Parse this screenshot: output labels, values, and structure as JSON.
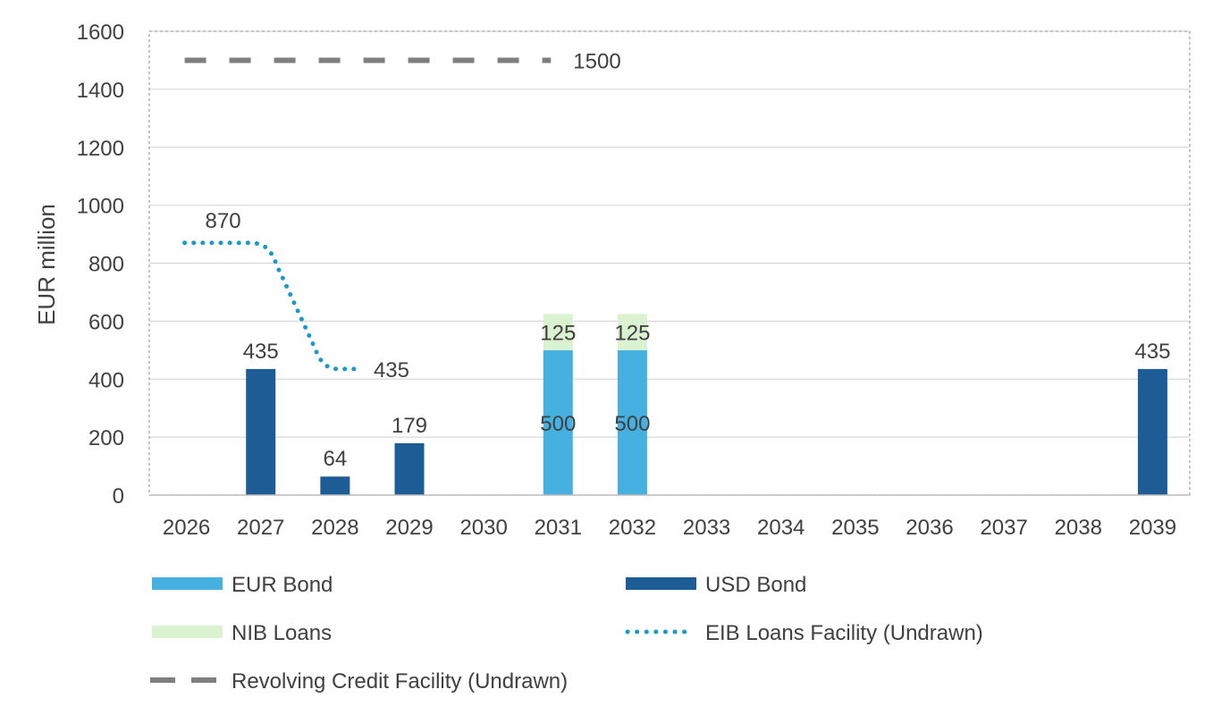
{
  "chart_data": {
    "type": "bar",
    "ylabel": "EUR million",
    "ylim": [
      0,
      1600
    ],
    "yticks": [
      0,
      200,
      400,
      600,
      800,
      1000,
      1200,
      1400,
      1600
    ],
    "grid": true,
    "legend_position": "bottom",
    "categories": [
      "2026",
      "2027",
      "2028",
      "2029",
      "2030",
      "2031",
      "2032",
      "2033",
      "2034",
      "2035",
      "2036",
      "2037",
      "2038",
      "2039"
    ],
    "bar_series": [
      {
        "name": "EUR Bond",
        "color": "#46B1E1",
        "values": [
          0,
          0,
          0,
          0,
          0,
          500,
          500,
          0,
          0,
          0,
          0,
          0,
          0,
          0
        ],
        "labels": [
          "",
          "",
          "",
          "",
          "",
          "500",
          "500",
          "",
          "",
          "",
          "",
          "",
          "",
          ""
        ]
      },
      {
        "name": "USD Bond",
        "color": "#1E5C96",
        "values": [
          0,
          435,
          64,
          179,
          0,
          0,
          0,
          0,
          0,
          0,
          0,
          0,
          0,
          435
        ],
        "labels": [
          "",
          "435",
          "64",
          "179",
          "",
          "",
          "",
          "",
          "",
          "",
          "",
          "",
          "",
          "435"
        ]
      },
      {
        "name": "NIB Loans",
        "color": "#DAF2D0",
        "values": [
          0,
          0,
          0,
          0,
          0,
          125,
          125,
          0,
          0,
          0,
          0,
          0,
          0,
          0
        ],
        "labels": [
          "",
          "",
          "",
          "",
          "",
          "125",
          "125",
          "",
          "",
          "",
          "",
          "",
          "",
          ""
        ]
      }
    ],
    "line_series": [
      {
        "name": "EIB Loans Facility (Undrawn)",
        "color": "#1A9AC8",
        "style": "dotted",
        "points": [
          [
            "2026",
            870
          ],
          [
            "2027",
            870
          ],
          [
            "2028",
            435
          ],
          [
            "2028.35",
            435
          ]
        ],
        "labels": [
          {
            "at": "2026",
            "value": 870,
            "text": "870"
          },
          {
            "at": "2028.35",
            "value": 435,
            "text": "435"
          }
        ]
      },
      {
        "name": "Revolving Credit Facility (Undrawn)",
        "color": "#7F7F7F",
        "style": "dashed",
        "points": [
          [
            "2026",
            1500
          ],
          [
            "2031",
            1500
          ]
        ],
        "labels": [
          {
            "at": "2031",
            "value": 1500,
            "text": "1500"
          }
        ]
      }
    ],
    "legend": [
      {
        "name": "EUR Bond",
        "kind": "bar",
        "color": "#46B1E1"
      },
      {
        "name": "USD Bond",
        "kind": "bar",
        "color": "#1E5C96"
      },
      {
        "name": "NIB Loans",
        "kind": "bar",
        "color": "#DAF2D0"
      },
      {
        "name": "EIB Loans Facility (Undrawn)",
        "kind": "dotted",
        "color": "#1A9AC8"
      },
      {
        "name": "Revolving Credit Facility (Undrawn)",
        "kind": "dashed",
        "color": "#7F7F7F"
      }
    ]
  }
}
